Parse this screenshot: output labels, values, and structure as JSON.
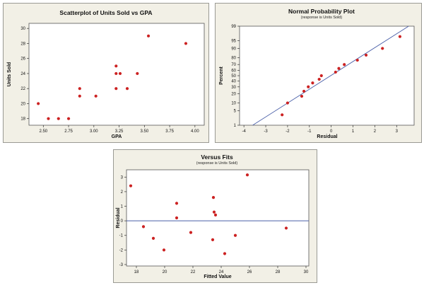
{
  "chart_data": [
    {
      "type": "scatter",
      "title": "Scatterplot of Units Sold vs GPA",
      "subtitle": "",
      "xlabel": "GPA",
      "ylabel": "Units Sold",
      "xlim": [
        2.4,
        4.05
      ],
      "ylim": [
        17.5,
        30.3
      ],
      "xticks": [
        2.5,
        2.75,
        3.0,
        3.25,
        3.5,
        3.75,
        4.0
      ],
      "xtick_labels": [
        "2.50",
        "2.75",
        "3.00",
        "3.25",
        "3.50",
        "3.75",
        "4.00"
      ],
      "yticks": [
        18,
        20,
        22,
        24,
        26,
        28,
        30
      ],
      "ytick_labels": [
        "18",
        "20",
        "22",
        "24",
        "26",
        "28",
        "30"
      ],
      "grid": false,
      "marker_color": "#cc2222",
      "points": [
        {
          "x": 2.45,
          "y": 20
        },
        {
          "x": 2.55,
          "y": 18
        },
        {
          "x": 2.65,
          "y": 18
        },
        {
          "x": 2.75,
          "y": 18
        },
        {
          "x": 2.86,
          "y": 22
        },
        {
          "x": 2.86,
          "y": 21
        },
        {
          "x": 3.02,
          "y": 21
        },
        {
          "x": 3.22,
          "y": 25
        },
        {
          "x": 3.22,
          "y": 24
        },
        {
          "x": 3.22,
          "y": 22
        },
        {
          "x": 3.26,
          "y": 24
        },
        {
          "x": 3.33,
          "y": 22
        },
        {
          "x": 3.43,
          "y": 24
        },
        {
          "x": 3.54,
          "y": 29
        },
        {
          "x": 3.91,
          "y": 28
        }
      ]
    },
    {
      "type": "scatter",
      "title": "Normal Probability Plot",
      "subtitle": "(response is Units Sold)",
      "xlabel": "Residual",
      "ylabel": "Percent",
      "scale_y": "normal-probability",
      "xlim": [
        -4.2,
        3.8
      ],
      "ylim": [
        1,
        99
      ],
      "xticks": [
        -4,
        -3,
        -2,
        -1,
        0,
        1,
        2,
        3
      ],
      "xtick_labels": [
        "-4",
        "-3",
        "-2",
        "-1",
        "0",
        "1",
        "2",
        "3"
      ],
      "yticks": [
        1,
        5,
        10,
        20,
        30,
        40,
        50,
        60,
        70,
        80,
        90,
        95,
        99
      ],
      "ytick_labels": [
        "1",
        "5",
        "10",
        "20",
        "30",
        "40",
        "50",
        "60",
        "70",
        "80",
        "90",
        "95",
        "99"
      ],
      "grid": false,
      "line_color": "#4a5fa8",
      "marker_color": "#cc2222",
      "fit_line": [
        {
          "x": -3.6,
          "y": 1
        },
        {
          "x": 3.55,
          "y": 99
        }
      ],
      "points": [
        {
          "x": -2.25,
          "y": 3.3
        },
        {
          "x": -2.0,
          "y": 10
        },
        {
          "x": -1.35,
          "y": 16.7
        },
        {
          "x": -1.25,
          "y": 23.3
        },
        {
          "x": -1.05,
          "y": 30
        },
        {
          "x": -0.85,
          "y": 36.7
        },
        {
          "x": -0.55,
          "y": 43.3
        },
        {
          "x": -0.45,
          "y": 50
        },
        {
          "x": 0.2,
          "y": 56.7
        },
        {
          "x": 0.35,
          "y": 63.3
        },
        {
          "x": 0.6,
          "y": 70
        },
        {
          "x": 1.2,
          "y": 76.7
        },
        {
          "x": 1.6,
          "y": 83.3
        },
        {
          "x": 2.35,
          "y": 90
        },
        {
          "x": 3.15,
          "y": 96.7
        }
      ]
    },
    {
      "type": "scatter",
      "title": "Versus Fits",
      "subtitle": "(response is Units Sold)",
      "xlabel": "Fitted Value",
      "ylabel": "Residual",
      "xlim": [
        17.3,
        30.2
      ],
      "ylim": [
        -3.1,
        3.5
      ],
      "xticks": [
        18,
        20,
        22,
        24,
        26,
        28,
        30
      ],
      "xtick_labels": [
        "18",
        "20",
        "22",
        "24",
        "26",
        "28",
        "30"
      ],
      "yticks": [
        -3,
        -2,
        -1,
        0,
        1,
        2,
        3
      ],
      "ytick_labels": [
        "-3",
        "-2",
        "-1",
        "0",
        "1",
        "2",
        "3"
      ],
      "grid": false,
      "reference_line_y": 0,
      "line_color": "#4a5fa8",
      "marker_color": "#cc2222",
      "points": [
        {
          "x": 17.6,
          "y": 2.4
        },
        {
          "x": 18.5,
          "y": -0.4
        },
        {
          "x": 19.2,
          "y": -1.2
        },
        {
          "x": 19.95,
          "y": -2.0
        },
        {
          "x": 20.85,
          "y": 1.2
        },
        {
          "x": 20.85,
          "y": 0.2
        },
        {
          "x": 21.85,
          "y": -0.8
        },
        {
          "x": 23.4,
          "y": -1.3
        },
        {
          "x": 23.45,
          "y": 1.6
        },
        {
          "x": 23.5,
          "y": 0.6
        },
        {
          "x": 23.6,
          "y": 0.4
        },
        {
          "x": 24.25,
          "y": -2.25
        },
        {
          "x": 25.0,
          "y": -1.0
        },
        {
          "x": 25.85,
          "y": 3.15
        },
        {
          "x": 28.6,
          "y": -0.5
        }
      ]
    }
  ]
}
